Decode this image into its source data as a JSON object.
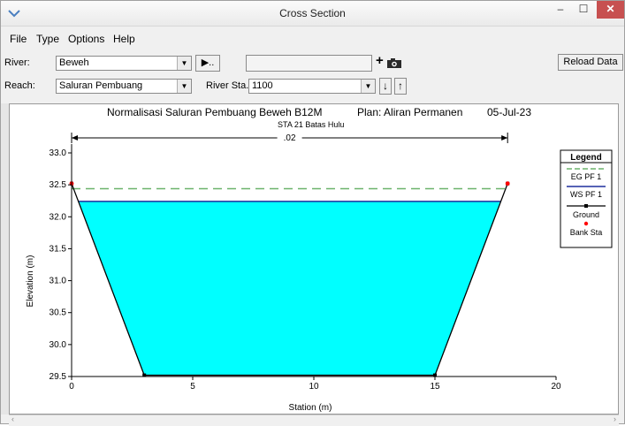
{
  "window": {
    "title": "Cross Section",
    "min_glyph": "–",
    "max_glyph": "☐",
    "close_glyph": "✕"
  },
  "menu": [
    "File",
    "Type",
    "Options",
    "Help"
  ],
  "toolbar": {
    "river_label": "River:",
    "river_value": "Beweh",
    "reach_label": "Reach:",
    "reach_value": "Saluran Pembuang",
    "river_sta_label": "River Sta.:",
    "river_sta_value": "1100",
    "play_label": "▶..",
    "plus_label": "+",
    "reload_label": "Reload Data"
  },
  "chart_data": {
    "type": "line",
    "title": "Normalisasi Saluran Pembuang Beweh B12M",
    "plan": "Plan: Aliran Permanen",
    "date": "05-Jul-23",
    "subtitle": "STA 21  Batas Hulu",
    "xlabel": "Station (m)",
    "ylabel": "Elevation (m)",
    "xlim": [
      0,
      20
    ],
    "ylim": [
      29.5,
      33.0
    ],
    "xticks": [
      0,
      5,
      10,
      15,
      20
    ],
    "yticks": [
      29.5,
      30.0,
      30.5,
      31.0,
      31.5,
      32.0,
      32.5,
      33.0
    ],
    "ground": [
      [
        0,
        32.52
      ],
      [
        3,
        29.52
      ],
      [
        15,
        29.52
      ],
      [
        18,
        32.52
      ]
    ],
    "bank_sta": [
      [
        0,
        32.52
      ],
      [
        18,
        32.52
      ]
    ],
    "eg_pf1": 32.44,
    "ws_pf1": 32.24,
    "manning": {
      "label": ".02",
      "x_start": 0,
      "x_end": 18
    },
    "legend": {
      "title": "Legend",
      "entries": [
        "EG PF 1",
        "WS PF 1",
        "Ground",
        "Bank Sta"
      ],
      "placement": "right"
    },
    "colors": {
      "eg": "#6bb36b",
      "ws": "#1f2f9e",
      "water": "#00ffff",
      "ground": "#000000",
      "bank": "#ff0000"
    }
  }
}
